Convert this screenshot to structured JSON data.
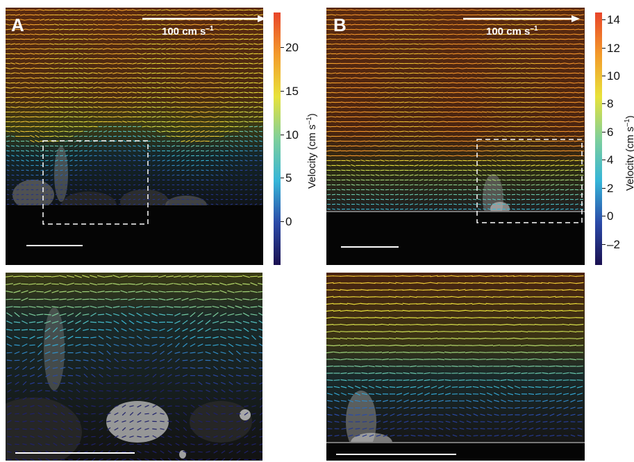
{
  "panels": {
    "A": {
      "letter": "A",
      "scale_arrow_label": "100 cm s",
      "scale_arrow_exp": "–1",
      "colorbar": {
        "title": "Velocity (cm s",
        "title_exp": "–1",
        "title_end": ")",
        "ticks": [
          "20",
          "15",
          "10",
          "5",
          "0"
        ],
        "range": [
          -5,
          24
        ]
      }
    },
    "B": {
      "letter": "B",
      "scale_arrow_label": "100 cm s",
      "scale_arrow_exp": "–1",
      "colorbar": {
        "title": "Velocity (cm s",
        "title_exp": "–1",
        "title_end": ")",
        "ticks": [
          "14",
          "12",
          "10",
          "8",
          "6",
          "4",
          "2",
          "0",
          "–2"
        ],
        "range": [
          -3.5,
          14.5
        ]
      }
    }
  },
  "colormap": [
    "#1a1050",
    "#2b4aa8",
    "#35b5d8",
    "#7fcf9a",
    "#e8e23a",
    "#f39a2b",
    "#e8452a"
  ]
}
